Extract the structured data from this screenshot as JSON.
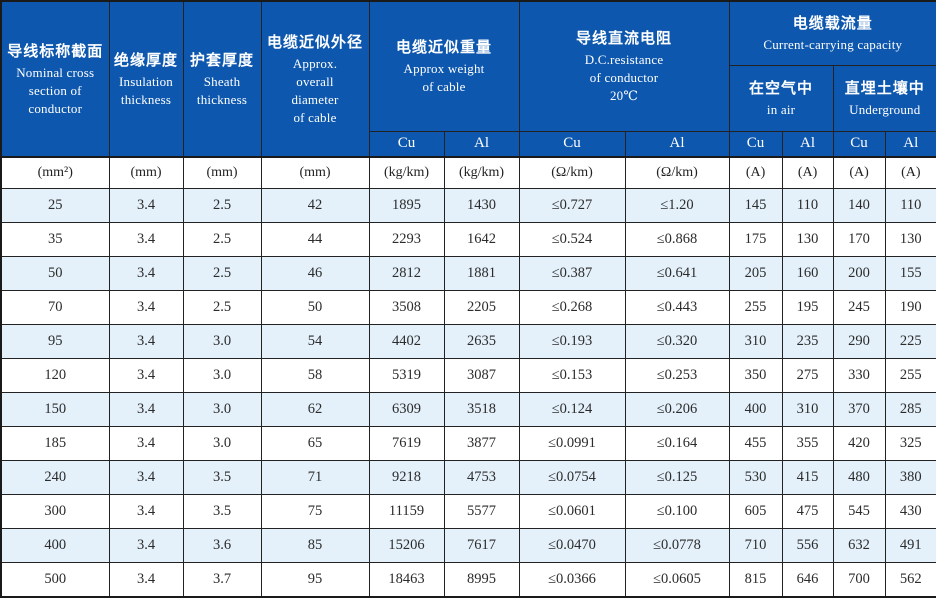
{
  "colors": {
    "header_blue": "#0d57ae",
    "header_text": "#ffffff",
    "row_alt_blue": "#e4f1fa",
    "row_white": "#ffffff",
    "border": "#222222",
    "data_text": "#2b2b2b"
  },
  "table": {
    "header": {
      "nominal": {
        "zh": "导线标称截面",
        "en": [
          "Nominal cross",
          "section of",
          "conductor"
        ]
      },
      "insulation": {
        "zh": "绝缘厚度",
        "en": [
          "Insulation",
          "thickness"
        ]
      },
      "sheath": {
        "zh": "护套厚度",
        "en": [
          "Sheath",
          "thickness"
        ]
      },
      "diameter": {
        "zh": "电缆近似外径",
        "en": [
          "Approx.",
          "overall",
          "diameter",
          "of cable"
        ]
      },
      "weight": {
        "zh": "电缆近似重量",
        "en": [
          "Approx weight",
          "of cable"
        ]
      },
      "resistance": {
        "zh": "导线直流电阻",
        "en": [
          "D.C.resistance",
          "of conductor",
          "20℃"
        ]
      },
      "capacity": {
        "zh": "电缆载流量",
        "en": [
          "Current-carrying capacity"
        ]
      },
      "in_air": {
        "zh": "在空气中",
        "en": [
          "in air"
        ]
      },
      "underground": {
        "zh": "直埋土壤中",
        "en": [
          "Underground"
        ]
      },
      "cu_al": [
        "Cu",
        "Al",
        "Cu",
        "Al",
        "Cu",
        "Al",
        "Cu",
        "Al"
      ]
    },
    "units": [
      "(mm²)",
      "(mm)",
      "(mm)",
      "(mm)",
      "(kg/km)",
      "(kg/km)",
      "(Ω/km)",
      "(Ω/km)",
      "(A)",
      "(A)",
      "(A)",
      "(A)"
    ]
  },
  "chart_data": {
    "type": "table",
    "columns": [
      "Nominal cross section of conductor (mm²)",
      "Insulation thickness (mm)",
      "Sheath thickness (mm)",
      "Approx. overall diameter of cable (mm)",
      "Approx weight of cable Cu (kg/km)",
      "Approx weight of cable Al (kg/km)",
      "D.C.resistance of conductor 20℃ Cu (Ω/km)",
      "D.C.resistance of conductor 20℃ Al (Ω/km)",
      "Current-carrying capacity in air Cu (A)",
      "Current-carrying capacity in air Al (A)",
      "Current-carrying capacity underground Cu (A)",
      "Current-carrying capacity underground Al (A)"
    ],
    "rows": [
      [
        "25",
        "3.4",
        "2.5",
        "42",
        "1895",
        "1430",
        "≤0.727",
        "≤1.20",
        "145",
        "110",
        "140",
        "110"
      ],
      [
        "35",
        "3.4",
        "2.5",
        "44",
        "2293",
        "1642",
        "≤0.524",
        "≤0.868",
        "175",
        "130",
        "170",
        "130"
      ],
      [
        "50",
        "3.4",
        "2.5",
        "46",
        "2812",
        "1881",
        "≤0.387",
        "≤0.641",
        "205",
        "160",
        "200",
        "155"
      ],
      [
        "70",
        "3.4",
        "2.5",
        "50",
        "3508",
        "2205",
        "≤0.268",
        "≤0.443",
        "255",
        "195",
        "245",
        "190"
      ],
      [
        "95",
        "3.4",
        "3.0",
        "54",
        "4402",
        "2635",
        "≤0.193",
        "≤0.320",
        "310",
        "235",
        "290",
        "225"
      ],
      [
        "120",
        "3.4",
        "3.0",
        "58",
        "5319",
        "3087",
        "≤0.153",
        "≤0.253",
        "350",
        "275",
        "330",
        "255"
      ],
      [
        "150",
        "3.4",
        "3.0",
        "62",
        "6309",
        "3518",
        "≤0.124",
        "≤0.206",
        "400",
        "310",
        "370",
        "285"
      ],
      [
        "185",
        "3.4",
        "3.0",
        "65",
        "7619",
        "3877",
        "≤0.0991",
        "≤0.164",
        "455",
        "355",
        "420",
        "325"
      ],
      [
        "240",
        "3.4",
        "3.5",
        "71",
        "9218",
        "4753",
        "≤0.0754",
        "≤0.125",
        "530",
        "415",
        "480",
        "380"
      ],
      [
        "300",
        "3.4",
        "3.5",
        "75",
        "11159",
        "5577",
        "≤0.0601",
        "≤0.100",
        "605",
        "475",
        "545",
        "430"
      ],
      [
        "400",
        "3.4",
        "3.6",
        "85",
        "15206",
        "7617",
        "≤0.0470",
        "≤0.0778",
        "710",
        "556",
        "632",
        "491"
      ],
      [
        "500",
        "3.4",
        "3.7",
        "95",
        "18463",
        "8995",
        "≤0.0366",
        "≤0.0605",
        "815",
        "646",
        "700",
        "562"
      ]
    ]
  }
}
